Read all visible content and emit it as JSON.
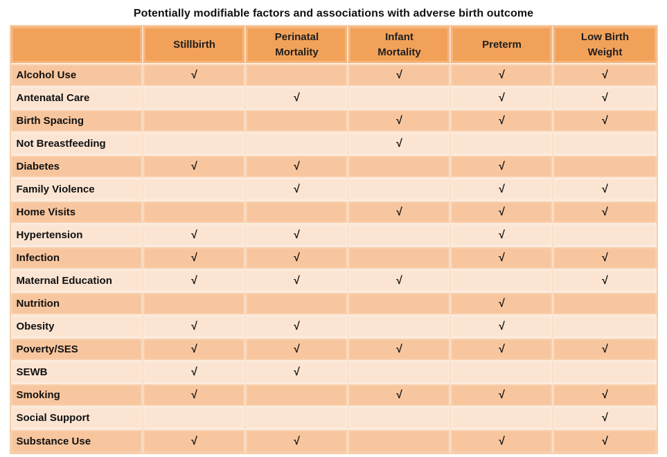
{
  "title": "Potentially modifiable factors and associations with adverse birth outcome",
  "colors": {
    "header_bg": "#F2A159",
    "row_dark": "#F8C69E",
    "row_light": "#FBE4D2",
    "grid_line": "#FBDFC6",
    "text": "#111111"
  },
  "chart_data": {
    "type": "table",
    "title": "Potentially modifiable factors and associations with adverse birth outcome",
    "check_symbol": "√",
    "columns": [
      "",
      "Stillbirth",
      "Perinatal\nMortality",
      "Infant\nMortality",
      "Preterm",
      "Low Birth\nWeight"
    ],
    "outcome_columns": [
      "Stillbirth",
      "Perinatal Mortality",
      "Infant Mortality",
      "Preterm",
      "Low Birth Weight"
    ],
    "rows": [
      {
        "factor": "Alcohol Use",
        "checks": [
          1,
          0,
          1,
          1,
          1
        ]
      },
      {
        "factor": "Antenatal Care",
        "checks": [
          0,
          1,
          0,
          1,
          1
        ]
      },
      {
        "factor": "Birth Spacing",
        "checks": [
          0,
          0,
          1,
          1,
          1
        ]
      },
      {
        "factor": "Not Breastfeeding",
        "checks": [
          0,
          0,
          1,
          0,
          0
        ]
      },
      {
        "factor": "Diabetes",
        "checks": [
          1,
          1,
          0,
          1,
          0
        ]
      },
      {
        "factor": "Family Violence",
        "checks": [
          0,
          1,
          0,
          1,
          1
        ]
      },
      {
        "factor": "Home Visits",
        "checks": [
          0,
          0,
          1,
          1,
          1
        ]
      },
      {
        "factor": "Hypertension",
        "checks": [
          1,
          1,
          0,
          1,
          0
        ]
      },
      {
        "factor": "Infection",
        "checks": [
          1,
          1,
          0,
          1,
          1
        ]
      },
      {
        "factor": "Maternal Education",
        "checks": [
          1,
          1,
          1,
          0,
          1
        ]
      },
      {
        "factor": "Nutrition",
        "checks": [
          0,
          0,
          0,
          1,
          0
        ]
      },
      {
        "factor": "Obesity",
        "checks": [
          1,
          1,
          0,
          1,
          0
        ]
      },
      {
        "factor": "Poverty/SES",
        "checks": [
          1,
          1,
          1,
          1,
          1
        ]
      },
      {
        "factor": "SEWB",
        "checks": [
          1,
          1,
          0,
          0,
          0
        ]
      },
      {
        "factor": "Smoking",
        "checks": [
          1,
          0,
          1,
          1,
          1
        ]
      },
      {
        "factor": "Social Support",
        "checks": [
          0,
          0,
          0,
          0,
          1
        ]
      },
      {
        "factor": "Substance Use",
        "checks": [
          1,
          1,
          0,
          1,
          1
        ]
      }
    ]
  }
}
